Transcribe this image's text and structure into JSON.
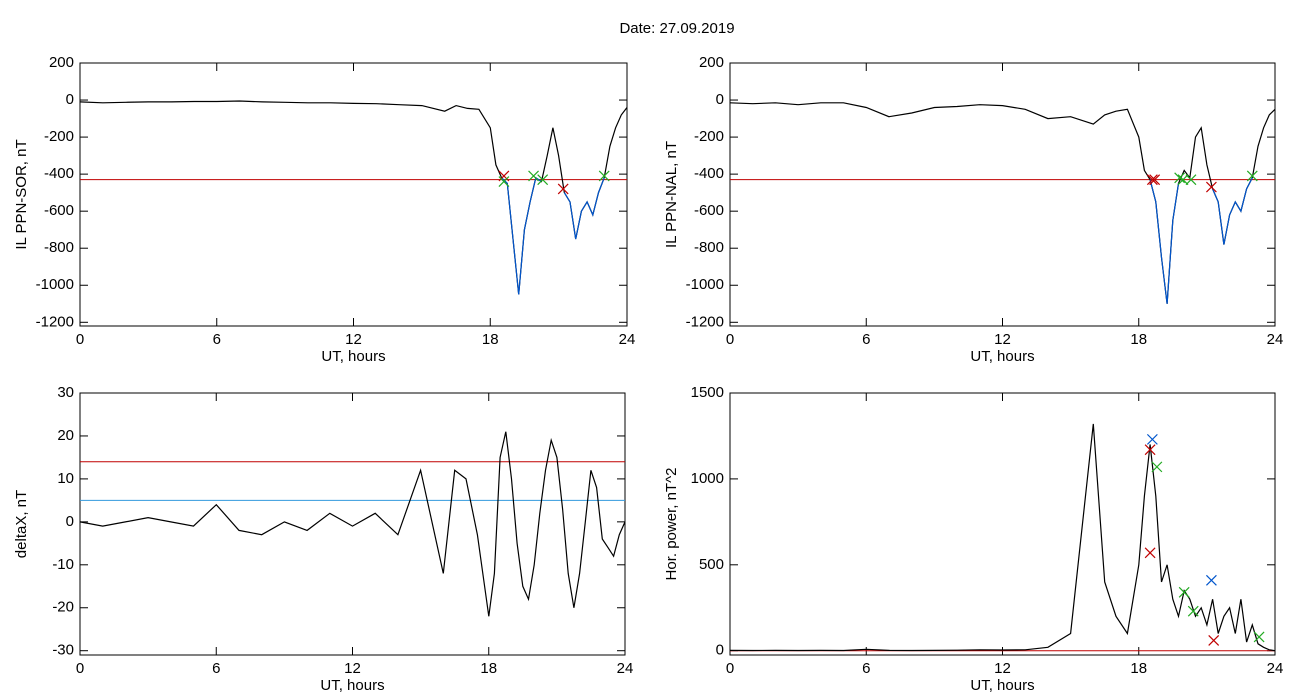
{
  "title": "Date:  27.09.2019",
  "chart_data": [
    {
      "type": "line",
      "ylabel": "IL PPN-SOR, nT",
      "xlabel": "UT, hours",
      "xlim": [
        0,
        24
      ],
      "xticks": [
        0,
        6,
        12,
        18,
        24
      ],
      "ylim": [
        -1220,
        200
      ],
      "yticks": [
        -1200,
        -1000,
        -800,
        -600,
        -400,
        -200,
        0,
        200
      ],
      "x": [
        0,
        1,
        2,
        3,
        4,
        5,
        6,
        7,
        8,
        9,
        10,
        11,
        12,
        13,
        14,
        15,
        16,
        16.5,
        17,
        17.5,
        18,
        18.25,
        18.5,
        18.75,
        19,
        19.25,
        19.5,
        19.75,
        20,
        20.25,
        20.5,
        20.75,
        21,
        21.25,
        21.5,
        21.75,
        22,
        22.25,
        22.5,
        22.75,
        23,
        23.25,
        23.5,
        23.75,
        24
      ],
      "series": [
        {
          "color": "#000000",
          "values": [
            -10,
            -15,
            -12,
            -10,
            -10,
            -8,
            -8,
            -5,
            -10,
            -12,
            -15,
            -15,
            -18,
            -20,
            -25,
            -30,
            -60,
            -30,
            -45,
            -50,
            -150,
            -350,
            -420,
            -450,
            -750,
            -1050,
            -700,
            -550,
            -420,
            -440,
            -300,
            -150,
            -300,
            -500,
            -550,
            -750,
            -600,
            -550,
            -620,
            -500,
            -420,
            -250,
            -150,
            -80,
            -40
          ]
        },
        {
          "color": "#0055cc",
          "values": [
            null,
            null,
            null,
            null,
            null,
            null,
            null,
            null,
            null,
            null,
            null,
            null,
            null,
            null,
            null,
            null,
            null,
            null,
            null,
            null,
            null,
            null,
            -420,
            -450,
            -750,
            -1050,
            -700,
            -550,
            -420,
            -440,
            null,
            null,
            null,
            -500,
            -550,
            -750,
            -600,
            -550,
            -620,
            -500,
            -420,
            null,
            null,
            null,
            null
          ]
        }
      ],
      "hlines": [
        {
          "value": -430,
          "color": "#c00000"
        }
      ],
      "markers": [
        {
          "color": "#c00000",
          "x": [
            18.6,
            21.2
          ],
          "values": [
            -410,
            -480
          ]
        },
        {
          "color": "#22aa22",
          "x": [
            18.6,
            19.9,
            20.3,
            23.0
          ],
          "values": [
            -440,
            -410,
            -430,
            -410
          ]
        }
      ]
    },
    {
      "type": "line",
      "ylabel": "IL PPN-NAL, nT",
      "xlabel": "UT, hours",
      "xlim": [
        0,
        24
      ],
      "xticks": [
        0,
        6,
        12,
        18,
        24
      ],
      "ylim": [
        -1220,
        200
      ],
      "yticks": [
        -1200,
        -1000,
        -800,
        -600,
        -400,
        -200,
        0,
        200
      ],
      "x": [
        0,
        1,
        2,
        3,
        4,
        5,
        6,
        7,
        8,
        9,
        10,
        11,
        12,
        13,
        14,
        15,
        16,
        16.5,
        17,
        17.5,
        18,
        18.25,
        18.5,
        18.75,
        19,
        19.25,
        19.5,
        19.75,
        20,
        20.25,
        20.5,
        20.75,
        21,
        21.25,
        21.5,
        21.75,
        22,
        22.25,
        22.5,
        22.75,
        23,
        23.25,
        23.5,
        23.75,
        24
      ],
      "series": [
        {
          "color": "#000000",
          "values": [
            -15,
            -20,
            -15,
            -25,
            -15,
            -15,
            -40,
            -90,
            -70,
            -40,
            -35,
            -25,
            -30,
            -50,
            -100,
            -90,
            -130,
            -80,
            -60,
            -50,
            -200,
            -380,
            -430,
            -550,
            -850,
            -1100,
            -650,
            -450,
            -380,
            -420,
            -200,
            -150,
            -350,
            -480,
            -550,
            -780,
            -620,
            -550,
            -600,
            -480,
            -420,
            -250,
            -150,
            -80,
            -50
          ]
        },
        {
          "color": "#0055cc",
          "values": [
            null,
            null,
            null,
            null,
            null,
            null,
            null,
            null,
            null,
            null,
            null,
            null,
            null,
            null,
            null,
            null,
            null,
            null,
            null,
            null,
            null,
            null,
            -430,
            -550,
            -850,
            -1100,
            -650,
            -450,
            null,
            null,
            null,
            null,
            null,
            -480,
            -550,
            -780,
            -620,
            -550,
            -600,
            -480,
            -420,
            null,
            null,
            null,
            null
          ]
        }
      ],
      "hlines": [
        {
          "value": -430,
          "color": "#c00000"
        }
      ],
      "markers": [
        {
          "color": "#c00000",
          "x": [
            18.6,
            18.7,
            21.2
          ],
          "values": [
            -430,
            -430,
            -470
          ]
        },
        {
          "color": "#22aa22",
          "x": [
            19.8,
            19.95,
            20.3,
            23.0
          ],
          "values": [
            -420,
            -430,
            -430,
            -410
          ]
        }
      ]
    },
    {
      "type": "line",
      "ylabel": "deltaX, nT",
      "xlabel": "UT, hours",
      "xlim": [
        0,
        24
      ],
      "xticks": [
        0,
        6,
        12,
        18,
        24
      ],
      "ylim": [
        -31,
        30
      ],
      "yticks": [
        -30,
        -20,
        -10,
        0,
        10,
        20,
        30
      ],
      "x": [
        0,
        1,
        2,
        3,
        4,
        5,
        6,
        7,
        8,
        9,
        10,
        11,
        12,
        13,
        14,
        15,
        16,
        16.5,
        17,
        17.5,
        18,
        18.25,
        18.5,
        18.75,
        19,
        19.25,
        19.5,
        19.75,
        20,
        20.25,
        20.5,
        20.75,
        21,
        21.25,
        21.5,
        21.75,
        22,
        22.25,
        22.5,
        22.75,
        23,
        23.25,
        23.5,
        23.75,
        24
      ],
      "series": [
        {
          "color": "#000000",
          "values": [
            0,
            -1,
            0,
            1,
            0,
            -1,
            4,
            -2,
            -3,
            0,
            -2,
            2,
            -1,
            2,
            -3,
            12,
            -12,
            12,
            10,
            -3,
            -22,
            -12,
            15,
            21,
            10,
            -5,
            -15,
            -18,
            -10,
            2,
            12,
            19,
            15,
            3,
            -12,
            -20,
            -12,
            0,
            12,
            8,
            -4,
            -6,
            -8,
            -3,
            0
          ]
        }
      ],
      "hlines": [
        {
          "value": 14,
          "color": "#c00000"
        },
        {
          "value": 5,
          "color": "#3399dd"
        }
      ],
      "markers": []
    },
    {
      "type": "line",
      "ylabel": "Hor. power, nT^2",
      "xlabel": "UT, hours",
      "xlim": [
        0,
        24
      ],
      "xticks": [
        0,
        6,
        12,
        18,
        24
      ],
      "ylim": [
        -25,
        1500
      ],
      "yticks": [
        0,
        500,
        1000,
        1500
      ],
      "x": [
        0,
        1,
        2,
        3,
        4,
        5,
        6,
        7,
        8,
        9,
        10,
        11,
        12,
        13,
        14,
        15,
        16,
        16.5,
        17,
        17.5,
        18,
        18.25,
        18.5,
        18.75,
        19,
        19.25,
        19.5,
        19.75,
        20,
        20.25,
        20.5,
        20.75,
        21,
        21.25,
        21.5,
        21.75,
        22,
        22.25,
        22.5,
        22.75,
        23,
        23.25,
        23.5,
        23.75,
        24
      ],
      "series": [
        {
          "color": "#000000",
          "values": [
            2,
            1,
            2,
            1,
            2,
            1,
            8,
            2,
            1,
            2,
            3,
            5,
            4,
            5,
            20,
            100,
            1320,
            400,
            200,
            100,
            500,
            900,
            1200,
            900,
            400,
            500,
            300,
            200,
            350,
            300,
            200,
            250,
            150,
            300,
            100,
            200,
            250,
            100,
            300,
            50,
            150,
            40,
            20,
            5,
            0
          ]
        }
      ],
      "hlines": [
        {
          "value": 0,
          "color": "#c00000"
        }
      ],
      "markers": [
        {
          "color": "#c00000",
          "x": [
            18.5,
            18.5,
            21.3
          ],
          "values": [
            570,
            1170,
            60
          ]
        },
        {
          "color": "#0055cc",
          "x": [
            18.6,
            21.2
          ],
          "values": [
            1230,
            410
          ]
        },
        {
          "color": "#22aa22",
          "x": [
            18.8,
            20.0,
            20.4,
            23.3
          ],
          "values": [
            1070,
            340,
            230,
            80
          ]
        }
      ]
    }
  ]
}
